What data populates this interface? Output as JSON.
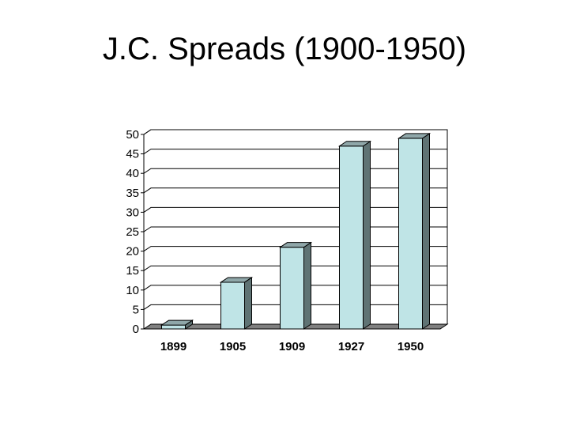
{
  "slide": {
    "title": "J.C. Spreads (1900-1950)"
  },
  "chart_data": {
    "type": "bar",
    "title": "J.C. Spreads (1900-1950)",
    "xlabel": "",
    "ylabel": "",
    "categories": [
      "1899",
      "1905",
      "1909",
      "1927",
      "1950"
    ],
    "values": [
      1,
      12,
      21,
      47,
      49
    ],
    "ylim": [
      0,
      50
    ],
    "yticks": [
      "0",
      "5",
      "10",
      "15",
      "20",
      "25",
      "30",
      "35",
      "40",
      "45",
      "50"
    ],
    "grid": true,
    "legend": "none",
    "bar_color": "#BFE4E6",
    "bar_side_color": "#5F7374",
    "floor_color": "#808080"
  }
}
